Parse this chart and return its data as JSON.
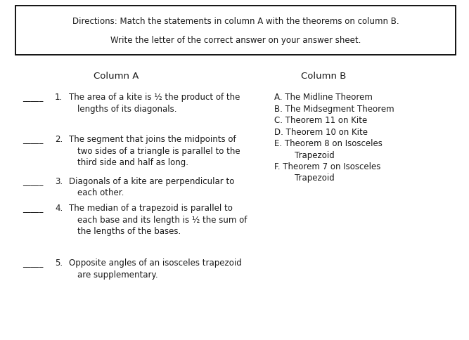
{
  "directions_line1": "Directions: Match the statements in column A with the theorems on column B.",
  "directions_line2": "Write the letter of the correct answer on your answer sheet.",
  "col_a_header": "Column A",
  "col_b_header": "Column B",
  "col_a_items": [
    {
      "number": "1.",
      "lines": [
        "The area of a kite is ½ the product of the",
        "lengths of its diagonals."
      ]
    },
    {
      "number": "2.",
      "lines": [
        "The segment that joins the midpoints of",
        "two sides of a triangle is parallel to the",
        "third side and half as long."
      ]
    },
    {
      "number": "3.",
      "lines": [
        "Diagonals of a kite are perpendicular to",
        "each other."
      ]
    },
    {
      "number": "4.",
      "lines": [
        "The median of a trapezoid is parallel to",
        "each base and its length is ½ the sum of",
        "the lengths of the bases."
      ]
    },
    {
      "number": "5.",
      "lines": [
        "Opposite angles of an isosceles trapezoid",
        "are supplementary."
      ]
    }
  ],
  "col_b_groups": [
    [
      "A. The Midline Theorem"
    ],
    [
      "B. The Midsegment Theorem"
    ],
    [
      "C. Theorem 11 on Kite"
    ],
    [
      "D. Theorem 10 on Kite"
    ],
    [
      "E. Theorem 8 on Isosceles",
      "    Trapezoid"
    ],
    [
      "F. Theorem 7 on Isosceles",
      "    Trapezoid"
    ]
  ],
  "bg_color": "#ffffff",
  "text_color": "#1a1a1a",
  "font_size": 8.5,
  "header_font_size": 9.5
}
